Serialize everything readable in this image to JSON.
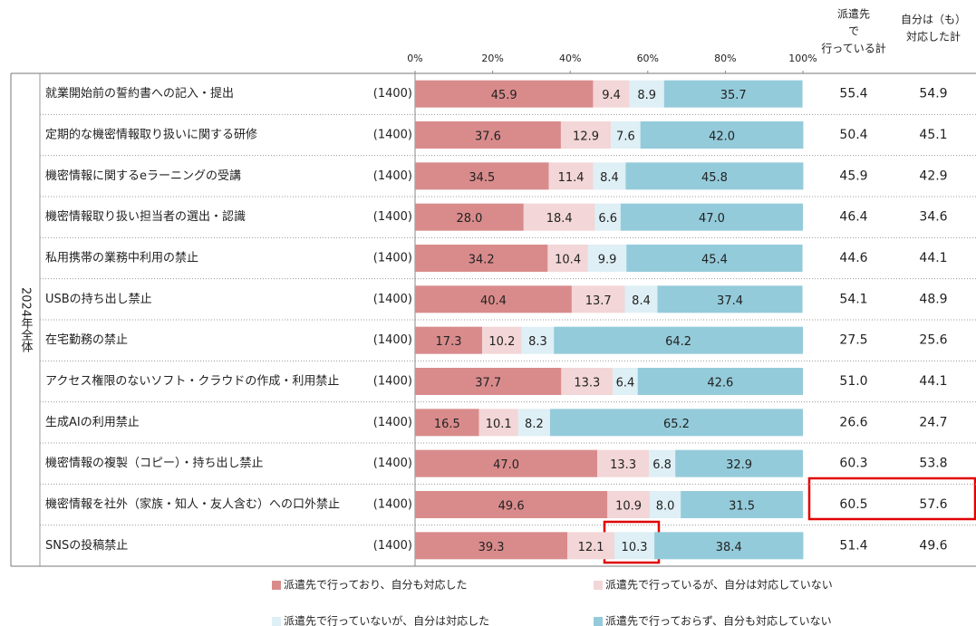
{
  "chart_data": {
    "type": "stacked_barh",
    "group_label": "2024年全体",
    "categories": [
      "就業開始前の誓約書への記入・提出",
      "定期的な機密情報取り扱いに関する研修",
      "機密情報に関するeラーニングの受講",
      "機密情報取り扱い担当者の選出・認識",
      "私用携帯の業務中利用の禁止",
      "USBの持ち出し禁止",
      "在宅勤務の禁止",
      "アクセス権限のないソフト・クラウドの作成・利用禁止",
      "生成AIの利用禁止",
      "機密情報の複製（コピー）・持ち出し禁止",
      "機密情報を社外（家族・知人・友人含む）への口外禁止",
      "SNSの投稿禁止"
    ],
    "sample_sizes": [
      "(1400)",
      "(1400)",
      "(1400)",
      "(1400)",
      "(1400)",
      "(1400)",
      "(1400)",
      "(1400)",
      "(1400)",
      "(1400)",
      "(1400)",
      "(1400)"
    ],
    "xlim": [
      0,
      100
    ],
    "xticks": [
      {
        "value": 0,
        "label": "0%"
      },
      {
        "value": 20,
        "label": "20%"
      },
      {
        "value": 40,
        "label": "40%"
      },
      {
        "value": 60,
        "label": "60%"
      },
      {
        "value": 80,
        "label": "80%"
      },
      {
        "value": 100,
        "label": "100%"
      }
    ],
    "series": [
      {
        "name": "派遣先で行っており、自分も対応した",
        "color": "#d98b8c",
        "values": [
          45.9,
          37.6,
          34.5,
          28.0,
          34.2,
          40.4,
          17.3,
          37.7,
          16.5,
          47.0,
          49.6,
          39.3
        ],
        "value_labels": [
          "45.9",
          "37.6",
          "34.5",
          "28.0",
          "34.2",
          "40.4",
          "17.3",
          "37.7",
          "16.5",
          "47.0",
          "49.6",
          "39.3"
        ]
      },
      {
        "name": "派遣先で行っているが、自分は対応していない",
        "color": "#f3d6d7",
        "values": [
          9.4,
          12.9,
          11.4,
          18.4,
          10.4,
          13.7,
          10.2,
          13.3,
          10.1,
          13.3,
          10.9,
          12.1
        ],
        "value_labels": [
          "9.4",
          "12.9",
          "11.4",
          "18.4",
          "10.4",
          "13.7",
          "10.2",
          "13.3",
          "10.1",
          "13.3",
          "10.9",
          "12.1"
        ]
      },
      {
        "name": "派遣先で行っていないが、自分は対応した",
        "color": "#deeff5",
        "values": [
          8.9,
          7.6,
          8.4,
          6.6,
          9.9,
          8.4,
          8.3,
          6.4,
          8.2,
          6.8,
          8.0,
          10.3
        ],
        "value_labels": [
          "8.9",
          "7.6",
          "8.4",
          "6.6",
          "9.9",
          "8.4",
          "8.3",
          "6.4",
          "8.2",
          "6.8",
          "8.0",
          "10.3"
        ]
      },
      {
        "name": "派遣先で行っておらず、自分も対応していない",
        "color": "#94cbda",
        "values": [
          35.7,
          42.0,
          45.8,
          47.0,
          45.4,
          37.4,
          64.2,
          42.6,
          65.2,
          32.9,
          31.5,
          38.4
        ],
        "value_labels": [
          "35.7",
          "42.0",
          "45.8",
          "47.0",
          "45.4",
          "37.4",
          "64.2",
          "42.6",
          "65.2",
          "32.9",
          "31.5",
          "38.4"
        ]
      }
    ],
    "summary_columns": [
      {
        "header": [
          "派遣先",
          "で",
          "行っている計"
        ],
        "cells": [
          "55.4",
          "50.4",
          "45.9",
          "46.4",
          "44.6",
          "54.1",
          "27.5",
          "51.0",
          "26.6",
          "60.3",
          "60.5",
          "51.4"
        ]
      },
      {
        "header": [
          "自分は（も）",
          "対応した計"
        ],
        "cells": [
          "54.9",
          "45.1",
          "42.9",
          "34.6",
          "44.1",
          "48.9",
          "25.6",
          "44.1",
          "24.7",
          "53.8",
          "57.6",
          "49.6"
        ]
      }
    ]
  }
}
